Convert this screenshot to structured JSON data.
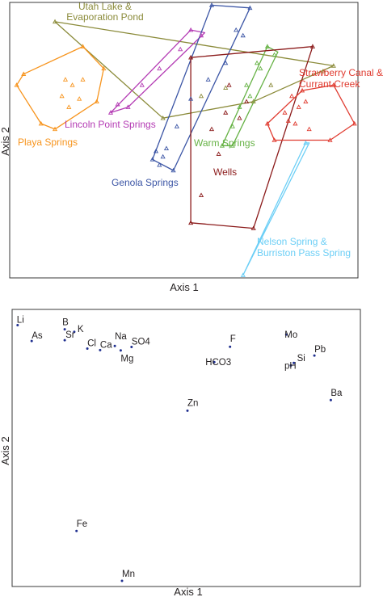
{
  "chart_data": [
    {
      "type": "scatter",
      "title": "",
      "xlabel": "Axis 1",
      "ylabel": "Axis 2",
      "xlim": [
        0,
        100
      ],
      "ylim": [
        0,
        100
      ],
      "grid": false,
      "groups": [
        {
          "name": "Utah Lake & Evaporation Pond",
          "label_lines": [
            "Utah Lake &",
            "Evaporation Pond"
          ],
          "color": "#8b8b3a",
          "hull": [
            [
              13,
              93
            ],
            [
              93,
              77
            ],
            [
              70,
              64
            ],
            [
              44,
              58
            ]
          ],
          "points": [
            [
              13,
              93
            ],
            [
              44,
              58
            ],
            [
              70,
              64
            ],
            [
              93,
              77
            ],
            [
              90,
              75
            ],
            [
              75,
              70
            ],
            [
              55,
              66
            ],
            [
              62,
              69
            ]
          ]
        },
        {
          "name": "Lincoln Point Springs",
          "label_lines": [
            "Lincoln Point Springs"
          ],
          "color": "#b43bb4",
          "hull": [
            [
              52,
              90
            ],
            [
              29,
              60
            ],
            [
              34,
              62
            ],
            [
              56,
              89
            ]
          ],
          "points": [
            [
              52,
              90
            ],
            [
              49,
              83
            ],
            [
              43,
              76
            ],
            [
              38,
              70
            ],
            [
              34,
              62
            ],
            [
              29,
              60
            ],
            [
              31,
              63
            ],
            [
              55,
              88
            ]
          ]
        },
        {
          "name": "Playa Springs",
          "label_lines": [
            "Playa Springs"
          ],
          "color": "#f7941d",
          "hull": [
            [
              4,
              74
            ],
            [
              21,
              84
            ],
            [
              27,
              76
            ],
            [
              25,
              64
            ],
            [
              13,
              54
            ],
            [
              9,
              56
            ],
            [
              2,
              70
            ]
          ],
          "points": [
            [
              4,
              74
            ],
            [
              21,
              84
            ],
            [
              27,
              76
            ],
            [
              25,
              64
            ],
            [
              13,
              54
            ],
            [
              9,
              56
            ],
            [
              2,
              70
            ],
            [
              16,
              72
            ],
            [
              18,
              70
            ],
            [
              21,
              72
            ],
            [
              15,
              66
            ],
            [
              20,
              65
            ],
            [
              17,
              62
            ]
          ]
        },
        {
          "name": "Genola Springs",
          "label_lines": [
            "Genola Springs"
          ],
          "color": "#3b55a5",
          "hull": [
            [
              58,
              99
            ],
            [
              41,
              43
            ],
            [
              47,
              39
            ],
            [
              69,
              98
            ]
          ],
          "points": [
            [
              58,
              99
            ],
            [
              69,
              98
            ],
            [
              65,
              90
            ],
            [
              67,
              88
            ],
            [
              62,
              78
            ],
            [
              57,
              72
            ],
            [
              52,
              65
            ],
            [
              48,
              55
            ],
            [
              45,
              47
            ],
            [
              41,
              43
            ],
            [
              43,
              41
            ],
            [
              47,
              39
            ],
            [
              44,
              44
            ],
            [
              42,
              46
            ]
          ]
        },
        {
          "name": "Warm Springs",
          "label_lines": [
            "Warm Springs"
          ],
          "color": "#66b245",
          "hull": [
            [
              74,
              84
            ],
            [
              61,
              48
            ],
            [
              64,
              48
            ],
            [
              77,
              82
            ]
          ],
          "points": [
            [
              74,
              84
            ],
            [
              71,
              78
            ],
            [
              68,
              70
            ],
            [
              66,
              62
            ],
            [
              64,
              55
            ],
            [
              61,
              48
            ],
            [
              64,
              48
            ],
            [
              72,
              76
            ],
            [
              76,
              81
            ],
            [
              69,
              66
            ]
          ]
        },
        {
          "name": "Wells",
          "label_lines": [
            "Wells"
          ],
          "color": "#8b1a1a",
          "hull": [
            [
              52,
              80
            ],
            [
              87,
              84
            ],
            [
              70,
              18
            ],
            [
              52,
              20
            ]
          ],
          "points": [
            [
              52,
              80
            ],
            [
              87,
              84
            ],
            [
              70,
              18
            ],
            [
              52,
              20
            ],
            [
              55,
              30
            ],
            [
              60,
              45
            ],
            [
              62,
              60
            ],
            [
              66,
              58
            ],
            [
              58,
              54
            ],
            [
              68,
              64
            ],
            [
              63,
              70
            ]
          ]
        },
        {
          "name": "Strawberry Canal & Currant Creek",
          "label_lines": [
            "Strawberry Canal &",
            "Currant Creek"
          ],
          "color": "#e03c31",
          "hull": [
            [
              84,
              68
            ],
            [
              93,
              70
            ],
            [
              99,
              56
            ],
            [
              92,
              50
            ],
            [
              76,
              50
            ],
            [
              74,
              56
            ]
          ],
          "points": [
            [
              84,
              68
            ],
            [
              93,
              70
            ],
            [
              99,
              56
            ],
            [
              92,
              50
            ],
            [
              76,
              50
            ],
            [
              74,
              56
            ],
            [
              81,
              66
            ],
            [
              83,
              62
            ],
            [
              85,
              64
            ],
            [
              79,
              60
            ],
            [
              82,
              56
            ],
            [
              86,
              54
            ],
            [
              80,
              57
            ]
          ]
        },
        {
          "name": "Nelson Spring & Burriston Pass Spring",
          "label_lines": [
            "Nelson Spring &",
            "Burriston Pass Spring"
          ],
          "color": "#6dcff6",
          "hull": [
            [
              85,
              49
            ],
            [
              86,
              49
            ],
            [
              67,
              1
            ]
          ],
          "points": [
            [
              85,
              49
            ],
            [
              67,
              1
            ]
          ]
        }
      ]
    },
    {
      "type": "scatter",
      "title": "",
      "xlabel": "Axis 1",
      "ylabel": "Axis 2",
      "xlim": [
        0,
        100
      ],
      "ylim": [
        0,
        100
      ],
      "grid": false,
      "point_color": "#1f2f8f",
      "points": [
        {
          "label": "Li",
          "x": 0.2,
          "y": 98.3
        },
        {
          "label": "B",
          "x": 14.6,
          "y": 96.7
        },
        {
          "label": "K",
          "x": 17.5,
          "y": 95.7
        },
        {
          "label": "As",
          "x": 4.5,
          "y": 92.2
        },
        {
          "label": "Sr",
          "x": 14.6,
          "y": 92.5
        },
        {
          "label": "Cl",
          "x": 21.5,
          "y": 89.3
        },
        {
          "label": "Ca",
          "x": 25.4,
          "y": 88.7
        },
        {
          "label": "Na",
          "x": 29.9,
          "y": 90.3
        },
        {
          "label": "SO4",
          "x": 35.0,
          "y": 89.9
        },
        {
          "label": "Mg",
          "x": 31.7,
          "y": 88.6
        },
        {
          "label": "F",
          "x": 65.1,
          "y": 90.0
        },
        {
          "label": "HCO3",
          "x": 60.3,
          "y": 84.1
        },
        {
          "label": "Mo",
          "x": 82.3,
          "y": 94.7
        },
        {
          "label": "pH",
          "x": 83.7,
          "y": 82.8
        },
        {
          "label": "Si",
          "x": 84.6,
          "y": 83.8
        },
        {
          "label": "Pb",
          "x": 90.9,
          "y": 86.6
        },
        {
          "label": "Ba",
          "x": 95.9,
          "y": 69.5
        },
        {
          "label": "Zn",
          "x": 52.1,
          "y": 65.4
        },
        {
          "label": "Fe",
          "x": 18.2,
          "y": 19.2
        },
        {
          "label": "Mn",
          "x": 32.1,
          "y": 0.0
        }
      ]
    }
  ]
}
